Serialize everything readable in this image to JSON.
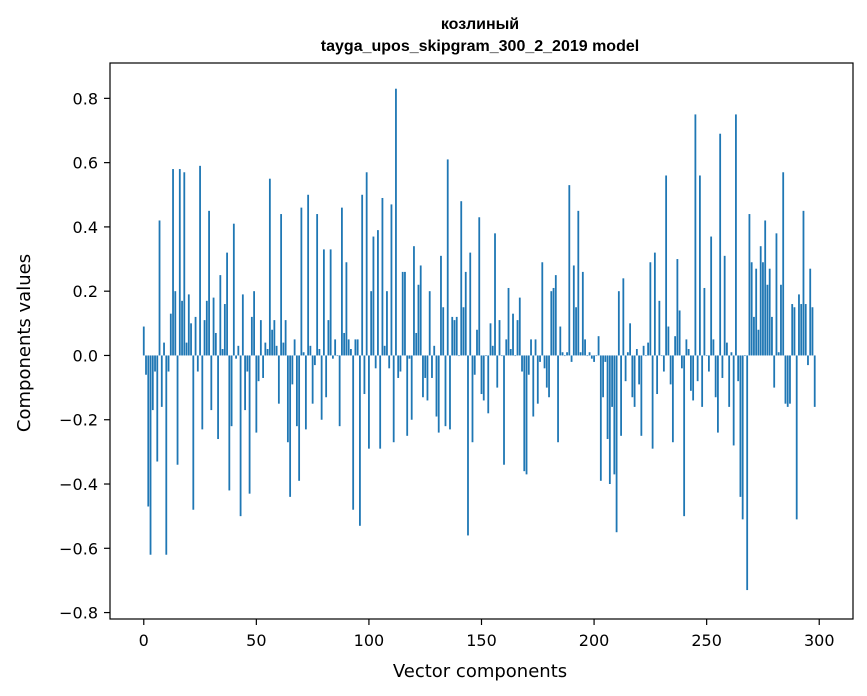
{
  "chart_data": {
    "type": "bar",
    "title": "козлиный",
    "subtitle": "tayga_upos_skipgram_300_2_2019 model",
    "xlabel": "Vector components",
    "ylabel": "Components values",
    "xlim": [
      -15,
      315
    ],
    "ylim": [
      -0.82,
      0.91
    ],
    "xticks": [
      0,
      50,
      100,
      150,
      200,
      250,
      300
    ],
    "xtick_labels": [
      "0",
      "50",
      "100",
      "150",
      "200",
      "250",
      "300"
    ],
    "yticks": [
      -0.8,
      -0.6,
      -0.4,
      -0.2,
      0.0,
      0.2,
      0.4,
      0.6,
      0.8
    ],
    "ytick_labels": [
      "−0.8",
      "−0.6",
      "−0.4",
      "−0.2",
      "0.0",
      "0.2",
      "0.4",
      "0.6",
      "0.8"
    ],
    "bar_color": "#1f77b4",
    "values": [
      0.09,
      -0.06,
      -0.47,
      -0.62,
      -0.17,
      -0.05,
      -0.33,
      0.42,
      -0.16,
      0.04,
      -0.62,
      -0.05,
      0.13,
      0.58,
      0.2,
      -0.34,
      0.58,
      0.17,
      0.57,
      0.04,
      0.19,
      0.1,
      -0.48,
      0.12,
      -0.05,
      0.59,
      -0.23,
      0.11,
      0.17,
      0.45,
      -0.17,
      0.18,
      0.07,
      -0.26,
      0.25,
      0.02,
      0.16,
      0.32,
      -0.42,
      -0.22,
      0.41,
      -0.01,
      0.03,
      -0.5,
      0.19,
      -0.17,
      -0.05,
      -0.43,
      0.12,
      0.2,
      -0.24,
      -0.08,
      0.11,
      -0.07,
      0.04,
      0.02,
      0.55,
      0.08,
      0.11,
      0.03,
      -0.15,
      0.44,
      0.04,
      0.11,
      -0.27,
      -0.44,
      -0.09,
      0.05,
      -0.22,
      -0.39,
      0.46,
      0.01,
      -0.23,
      0.5,
      0.03,
      -0.15,
      -0.03,
      0.44,
      0.02,
      -0.2,
      0.33,
      -0.13,
      0.11,
      0.33,
      -0.01,
      0.05,
      0.0,
      -0.22,
      0.46,
      0.07,
      0.29,
      0.05,
      0.02,
      -0.48,
      0.05,
      0.05,
      -0.53,
      0.5,
      -0.12,
      0.57,
      -0.29,
      0.2,
      0.37,
      -0.04,
      0.39,
      -0.29,
      0.49,
      0.03,
      0.2,
      -0.04,
      0.47,
      -0.27,
      0.83,
      -0.07,
      -0.05,
      0.26,
      0.26,
      -0.25,
      -0.01,
      -0.2,
      0.34,
      0.07,
      0.22,
      0.28,
      -0.13,
      -0.07,
      -0.14,
      0.2,
      -0.07,
      0.03,
      -0.19,
      -0.24,
      0.31,
      0.15,
      -0.22,
      0.61,
      -0.23,
      0.12,
      0.11,
      0.12,
      0.0,
      0.48,
      0.15,
      0.26,
      -0.56,
      0.32,
      -0.27,
      -0.06,
      0.08,
      0.43,
      -0.12,
      -0.14,
      0.0,
      -0.18,
      0.1,
      0.03,
      0.38,
      -0.1,
      0.11,
      0.0,
      -0.34,
      0.05,
      0.21,
      0.02,
      0.13,
      0.0,
      0.11,
      0.18,
      -0.05,
      -0.36,
      -0.37,
      -0.06,
      0.05,
      -0.19,
      0.05,
      -0.15,
      -0.02,
      0.29,
      -0.04,
      -0.1,
      -0.13,
      0.2,
      0.21,
      0.25,
      -0.27,
      0.09,
      0.01,
      0.0,
      0.01,
      0.53,
      -0.02,
      0.28,
      0.15,
      0.45,
      0.01,
      0.26,
      0.05,
      0.0,
      0.01,
      -0.01,
      -0.02,
      0.0,
      0.06,
      -0.39,
      -0.13,
      -0.02,
      -0.26,
      -0.4,
      -0.16,
      -0.37,
      -0.55,
      0.2,
      -0.25,
      0.24,
      -0.08,
      0.01,
      0.1,
      -0.13,
      -0.16,
      0.02,
      -0.09,
      -0.25,
      0.03,
      0.0,
      0.04,
      0.29,
      -0.29,
      0.32,
      -0.12,
      0.17,
      0.0,
      -0.05,
      0.56,
      0.09,
      -0.09,
      -0.27,
      0.06,
      0.3,
      0.14,
      -0.04,
      -0.5,
      0.05,
      0.02,
      -0.11,
      -0.14,
      0.75,
      -0.08,
      0.56,
      -0.16,
      0.21,
      0.0,
      -0.05,
      0.37,
      0.05,
      -0.13,
      -0.24,
      0.69,
      -0.07,
      0.31,
      0.04,
      -0.16,
      0.01,
      -0.28,
      0.75,
      -0.08,
      -0.44,
      -0.51,
      0.0,
      -0.73,
      0.44,
      0.29,
      0.12,
      0.27,
      0.08,
      0.34,
      0.29,
      0.42,
      0.22,
      0.27,
      0.12,
      -0.1,
      0.38,
      0.01,
      0.22,
      0.57,
      -0.15,
      -0.16,
      -0.15,
      0.16,
      0.15,
      -0.51,
      0.19,
      0.16,
      0.45,
      0.16,
      -0.03,
      0.27,
      0.15,
      -0.16
    ]
  }
}
